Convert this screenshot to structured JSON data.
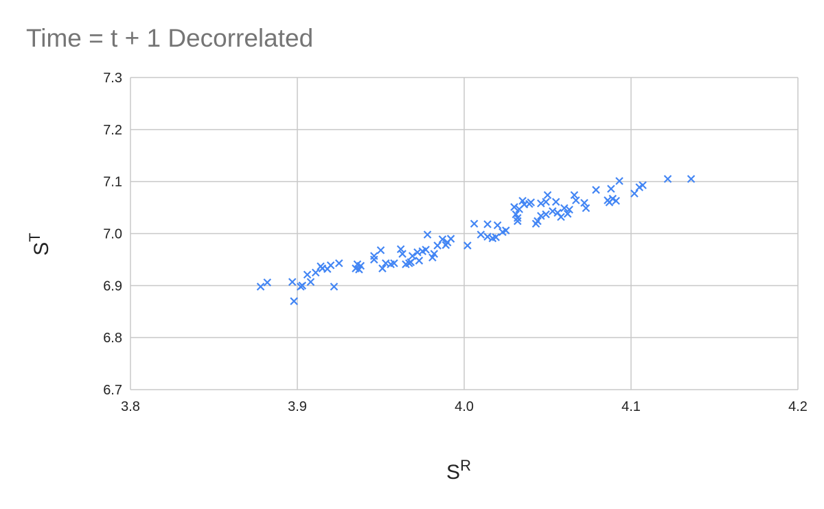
{
  "chart_data": {
    "type": "scatter",
    "title": "Time = t + 1 Decorrelated",
    "x_label": "S",
    "x_label_sup": "R",
    "y_label": "S",
    "y_label_sup": "T",
    "color": "#4285f4",
    "grid": true,
    "xlim": [
      3.8,
      4.2
    ],
    "xticks": [
      3.8,
      3.9,
      {
        "value": 4.0,
        "label": "4.0"
      },
      4.1,
      4.2
    ],
    "ylim": [
      6.7,
      7.3
    ],
    "yticks": [
      6.7,
      6.8,
      6.9,
      {
        "value": 7.0,
        "label": "7.0"
      },
      7.1,
      7.2,
      7.3
    ],
    "x": [
      3.878,
      3.882,
      3.897,
      3.898,
      3.902,
      3.903,
      3.906,
      3.908,
      3.911,
      3.914,
      3.915,
      3.918,
      3.92,
      3.922,
      3.925,
      3.935,
      3.936,
      3.937,
      3.938,
      3.946,
      3.946,
      3.95,
      3.951,
      3.953,
      3.956,
      3.958,
      3.962,
      3.963,
      3.965,
      3.967,
      3.968,
      3.969,
      3.972,
      3.973,
      3.975,
      3.977,
      3.978,
      3.981,
      3.982,
      3.984,
      3.987,
      3.989,
      3.99,
      3.992,
      4.002,
      4.006,
      4.01,
      4.014,
      4.014,
      4.017,
      4.019,
      4.02,
      4.023,
      4.025,
      4.03,
      4.031,
      4.032,
      4.032,
      4.033,
      4.035,
      4.036,
      4.039,
      4.04,
      4.043,
      4.044,
      4.046,
      4.046,
      4.049,
      4.049,
      4.05,
      4.053,
      4.055,
      4.056,
      4.058,
      4.06,
      4.062,
      4.063,
      4.066,
      4.067,
      4.072,
      4.073,
      4.079,
      4.086,
      4.087,
      4.088,
      4.089,
      4.091,
      4.093,
      4.102,
      4.105,
      4.107,
      4.122,
      4.136
    ],
    "values": [
      6.898,
      6.906,
      6.907,
      6.87,
      6.898,
      6.9,
      6.921,
      6.907,
      6.925,
      6.937,
      6.933,
      6.932,
      6.939,
      6.898,
      6.943,
      6.933,
      6.941,
      6.931,
      6.938,
      6.957,
      6.95,
      6.968,
      6.933,
      6.943,
      6.941,
      6.943,
      6.97,
      6.961,
      6.941,
      6.943,
      6.945,
      6.957,
      6.964,
      6.948,
      6.966,
      6.969,
      6.998,
      6.954,
      6.961,
      6.977,
      6.989,
      6.978,
      6.983,
      6.99,
      6.977,
      7.019,
      6.998,
      7.018,
      6.994,
      6.991,
      6.993,
      7.016,
      7.003,
      7.006,
      7.051,
      7.037,
      7.03,
      7.024,
      7.047,
      7.063,
      7.056,
      7.057,
      7.06,
      7.019,
      7.024,
      7.058,
      7.034,
      7.037,
      7.061,
      7.074,
      7.043,
      7.061,
      7.04,
      7.032,
      7.049,
      7.038,
      7.046,
      7.074,
      7.064,
      7.059,
      7.049,
      7.084,
      7.064,
      7.06,
      7.086,
      7.067,
      7.063,
      7.101,
      7.077,
      7.089,
      7.093,
      7.105,
      7.105
    ]
  }
}
